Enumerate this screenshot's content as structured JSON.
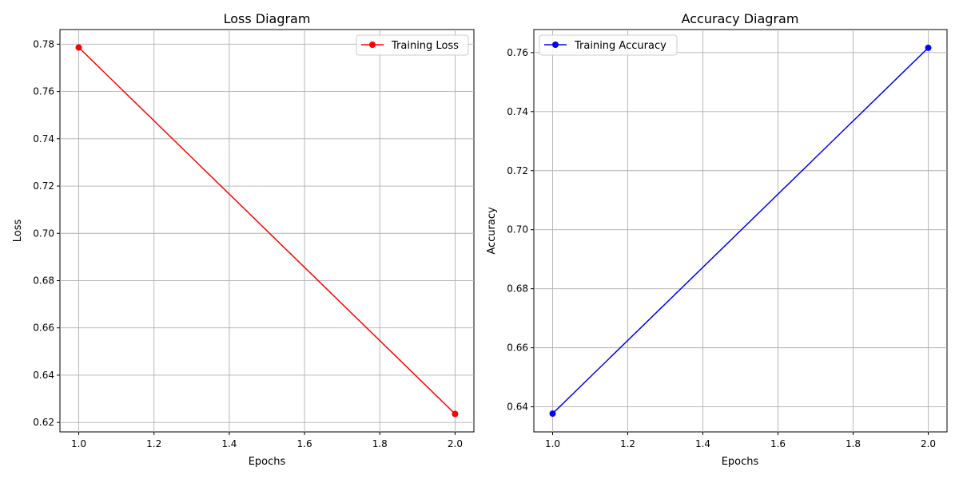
{
  "chart_data": [
    {
      "type": "line",
      "title": "Loss Diagram",
      "xlabel": "Epochs",
      "ylabel": "Loss",
      "xlim": [
        0.95,
        2.05
      ],
      "ylim": [
        0.616,
        0.7862
      ],
      "xticks": [
        1.0,
        1.2,
        1.4,
        1.6,
        1.8,
        2.0
      ],
      "yticks": [
        0.62,
        0.64,
        0.66,
        0.68,
        0.7,
        0.72,
        0.74,
        0.76,
        0.78
      ],
      "x_tick_labels": [
        "1.0",
        "1.2",
        "1.4",
        "1.6",
        "1.8",
        "2.0"
      ],
      "y_tick_labels": [
        "0.62",
        "0.64",
        "0.66",
        "0.68",
        "0.70",
        "0.72",
        "0.74",
        "0.76",
        "0.78"
      ],
      "grid": true,
      "legend_position": "top-right",
      "series": [
        {
          "name": "Training Loss",
          "color": "#ff0000",
          "x": [
            1,
            2
          ],
          "y": [
            0.7786,
            0.6236
          ]
        }
      ]
    },
    {
      "type": "line",
      "title": "Accuracy Diagram",
      "xlabel": "Epochs",
      "ylabel": "Accuracy",
      "xlim": [
        0.95,
        2.05
      ],
      "ylim": [
        0.6315,
        0.7678
      ],
      "xticks": [
        1.0,
        1.2,
        1.4,
        1.6,
        1.8,
        2.0
      ],
      "yticks": [
        0.64,
        0.66,
        0.68,
        0.7,
        0.72,
        0.74,
        0.76
      ],
      "x_tick_labels": [
        "1.0",
        "1.2",
        "1.4",
        "1.6",
        "1.8",
        "2.0"
      ],
      "y_tick_labels": [
        "0.64",
        "0.66",
        "0.68",
        "0.70",
        "0.72",
        "0.74",
        "0.76"
      ],
      "grid": true,
      "legend_position": "top-left",
      "series": [
        {
          "name": "Training Accuracy",
          "color": "#0000ff",
          "x": [
            1,
            2
          ],
          "y": [
            0.6377,
            0.7616
          ]
        }
      ]
    }
  ]
}
